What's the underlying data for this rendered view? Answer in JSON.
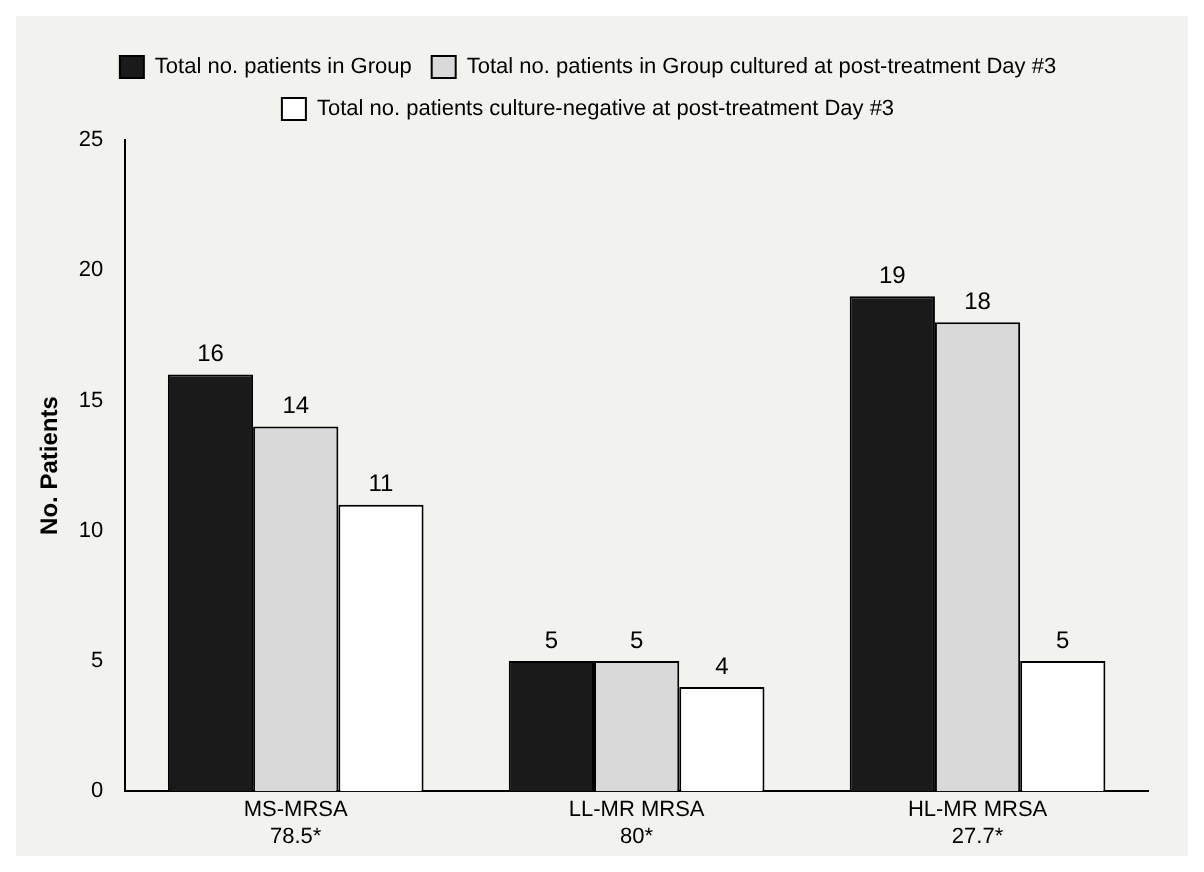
{
  "chart_data": {
    "type": "bar",
    "ylabel": "No. Patients",
    "categories": [
      "MS-MRSA\n78.5*",
      "LL-MR MRSA\n80*",
      "HL-MR MRSA\n27.7*"
    ],
    "series": [
      {
        "name": "Total no. patients in Group",
        "color": "#1a1a1a",
        "values": [
          16,
          5,
          19
        ]
      },
      {
        "name": "Total no. patients in Group cultured at post-treatment Day #3",
        "color": "#d9d9d9",
        "values": [
          14,
          5,
          18
        ]
      },
      {
        "name": "Total no. patients culture-negative at post-treatment Day #3",
        "color": "#ffffff",
        "values": [
          11,
          4,
          5
        ]
      }
    ],
    "ylim": [
      0,
      25
    ],
    "yticks": [
      0,
      5,
      10,
      15,
      20,
      25
    ],
    "grid": false,
    "legend": "top",
    "data_labels": true
  }
}
